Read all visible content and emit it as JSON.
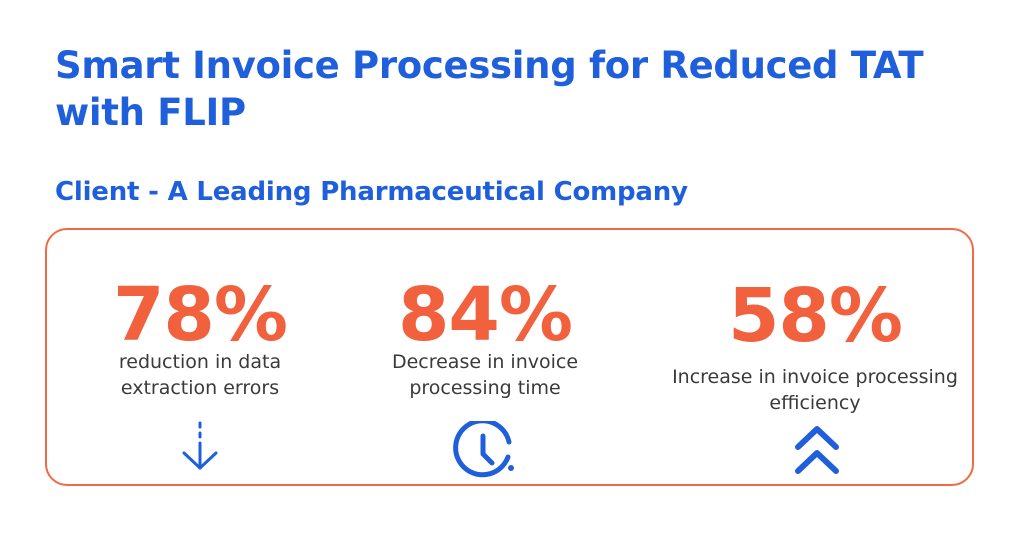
{
  "header": {
    "title": "Smart Invoice Processing for Reduced TAT with FLIP",
    "subtitle": "Client - A Leading Pharmaceutical Company"
  },
  "stats": [
    {
      "value": "78%",
      "line1": "reduction in data",
      "line2": "extraction errors",
      "icon": "arrow-down-icon"
    },
    {
      "value": "84%",
      "line1": "Decrease in invoice",
      "line2": "processing time",
      "icon": "clock-icon"
    },
    {
      "value": "58%",
      "line1": "Increase in invoice processing",
      "line2": "efficiency",
      "icon": "double-chevron-up-icon"
    }
  ],
  "colors": {
    "title": "#1f5fdc",
    "accent": "#f2613d",
    "border": "#f06a46",
    "icon": "#1f5fdc",
    "text": "#3a3a3a"
  }
}
